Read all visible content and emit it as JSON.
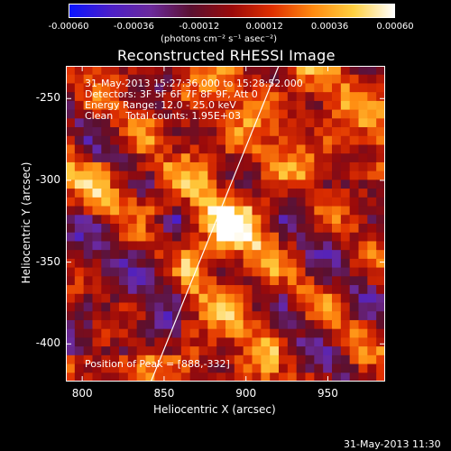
{
  "colorbar": {
    "ticks": [
      "-0.00060",
      "-0.00036",
      "-0.00012",
      "0.00012",
      "0.00036",
      "0.00060"
    ],
    "units": "(photons cm⁻² s⁻¹ asec⁻²)",
    "stops": [
      "#0a14ff",
      "#4b1fc8",
      "#6b2a9c",
      "#5a1030",
      "#9a0a0a",
      "#e03000",
      "#ff8a10",
      "#ffd040",
      "#ffffff"
    ]
  },
  "title": "Reconstructed RHESSI Image",
  "info": {
    "time_range": "31-May-2013 15:27:36.000 to 15:28:52.000",
    "detectors": "Detectors: 3F 5F 6F 7F 8F 9F, Att 0",
    "energy": "Energy Range: 12.0 - 25.0 keV",
    "clean": "Clean    Total counts: 1.95E+03",
    "peak": "Position of Peak = [888,-332]"
  },
  "footer": {
    "timestamp": "31-May-2013 11:30"
  },
  "chart_data": {
    "type": "heatmap",
    "title": "Reconstructed RHESSI Image",
    "xlabel": "Heliocentric X (arcsec)",
    "ylabel": "Heliocentric Y (arcsec)",
    "xlim": [
      790,
      985
    ],
    "ylim": [
      -423,
      -230
    ],
    "x_ticks": [
      800,
      850,
      900,
      950
    ],
    "y_ticks": [
      -250,
      -300,
      -350,
      -400
    ],
    "value_range": [
      -0.0006,
      0.0006
    ],
    "peak": {
      "x": 888,
      "y": -332
    },
    "limb_line": {
      "x": [
        842,
        920
      ],
      "y": [
        -423,
        -230
      ]
    }
  }
}
